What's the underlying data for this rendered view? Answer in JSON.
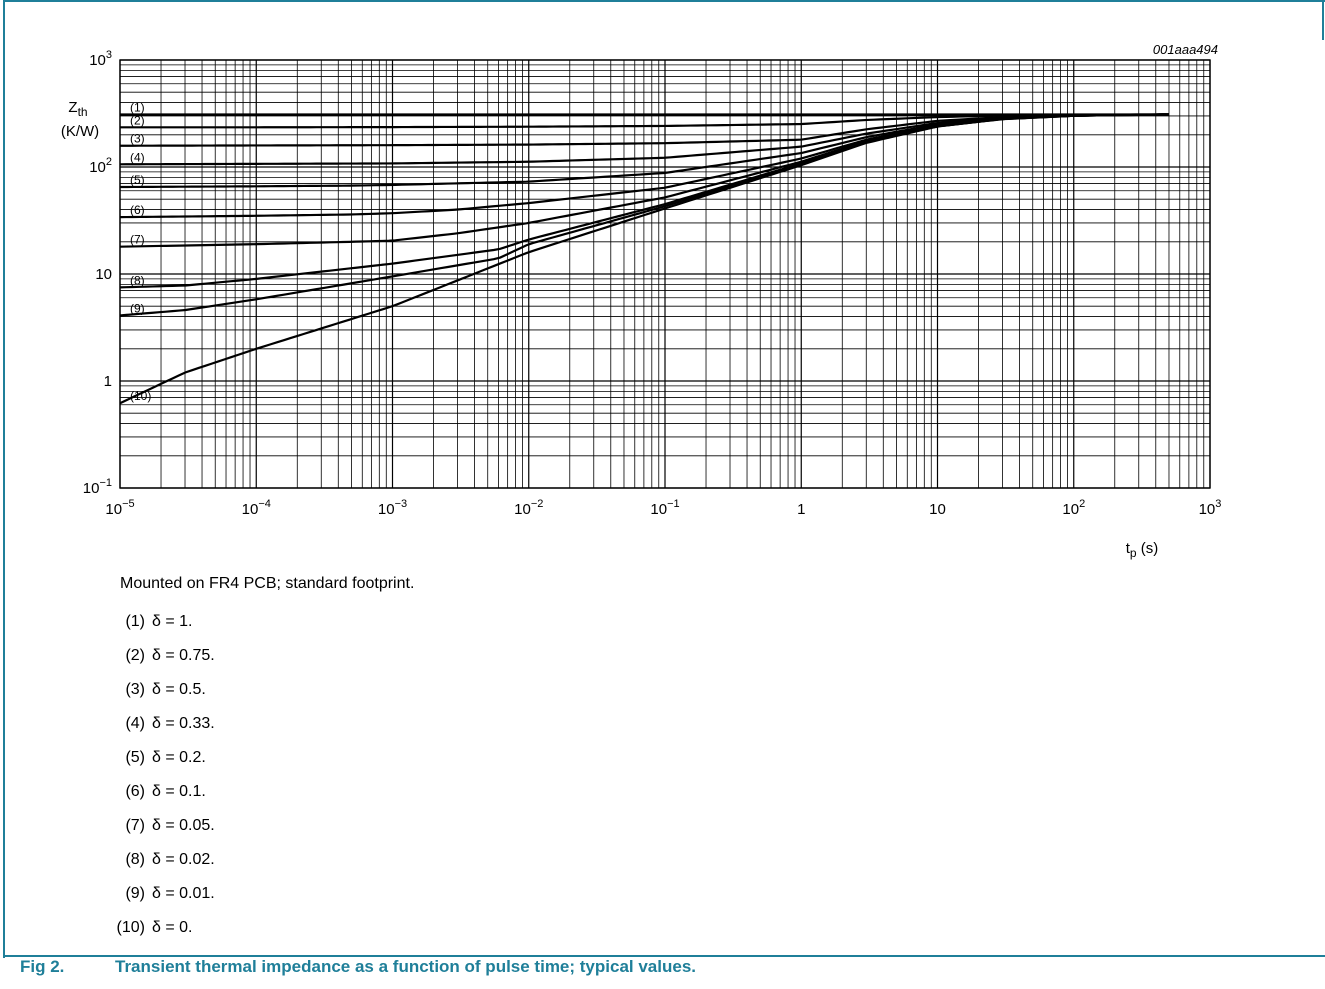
{
  "figure_code": "001aaa494",
  "note": "Mounted on FR4 PCB; standard footprint.",
  "caption_label": "Fig 2.",
  "caption_text": "Transient thermal impedance as a function of pulse time; typical values.",
  "legend_items": [
    {
      "num": "(1)",
      "text": "δ = 1."
    },
    {
      "num": "(2)",
      "text": "δ = 0.75."
    },
    {
      "num": "(3)",
      "text": "δ = 0.5."
    },
    {
      "num": "(4)",
      "text": "δ = 0.33."
    },
    {
      "num": "(5)",
      "text": "δ = 0.2."
    },
    {
      "num": "(6)",
      "text": "δ = 0.1."
    },
    {
      "num": "(7)",
      "text": "δ = 0.05."
    },
    {
      "num": "(8)",
      "text": "δ = 0.02."
    },
    {
      "num": "(9)",
      "text": "δ = 0.01."
    },
    {
      "num": "(10)",
      "text": "δ = 0."
    }
  ],
  "colors": {
    "line": "#000000",
    "grid": "#000000",
    "accent": "#1f7f99"
  },
  "chart_data": {
    "type": "line",
    "xscale": "log",
    "yscale": "log",
    "xlim": [
      1e-05,
      1000
    ],
    "ylim": [
      0.1,
      1000
    ],
    "ylabel": {
      "main": "Z",
      "sub": "th",
      "unit": "(K/W)"
    },
    "xlabel": {
      "main": "t",
      "sub": "p",
      "unit": "(s)"
    },
    "x_ticks": [
      {
        "v": 1e-05,
        "base": "10",
        "exp": "−5"
      },
      {
        "v": 0.0001,
        "base": "10",
        "exp": "−4"
      },
      {
        "v": 0.001,
        "base": "10",
        "exp": "−3"
      },
      {
        "v": 0.01,
        "base": "10",
        "exp": "−2"
      },
      {
        "v": 0.1,
        "base": "10",
        "exp": "−1"
      },
      {
        "v": 1,
        "base": "1",
        "exp": ""
      },
      {
        "v": 10,
        "base": "10",
        "exp": ""
      },
      {
        "v": 100,
        "base": "10",
        "exp": "2"
      },
      {
        "v": 1000,
        "base": "10",
        "exp": "3"
      }
    ],
    "y_ticks": [
      {
        "v": 0.1,
        "base": "10",
        "exp": "−1"
      },
      {
        "v": 1,
        "base": "1",
        "exp": ""
      },
      {
        "v": 10,
        "base": "10",
        "exp": ""
      },
      {
        "v": 100,
        "base": "10",
        "exp": "2"
      },
      {
        "v": 1000,
        "base": "10",
        "exp": "3"
      }
    ],
    "grid": true,
    "series": [
      {
        "name": "(1)",
        "points": [
          [
            1e-05,
            310
          ],
          [
            0.0001,
            310
          ],
          [
            0.001,
            310
          ],
          [
            0.01,
            310
          ],
          [
            0.1,
            310
          ],
          [
            1,
            310
          ],
          [
            10,
            310
          ],
          [
            100,
            310
          ],
          [
            500,
            310
          ]
        ]
      },
      {
        "name": "(2)",
        "points": [
          [
            1e-05,
            235
          ],
          [
            0.0001,
            235
          ],
          [
            0.001,
            236
          ],
          [
            0.01,
            238
          ],
          [
            0.1,
            242
          ],
          [
            1,
            252
          ],
          [
            3,
            275
          ],
          [
            10,
            293
          ],
          [
            30,
            302
          ],
          [
            100,
            308
          ],
          [
            500,
            310
          ]
        ]
      },
      {
        "name": "(3)",
        "points": [
          [
            1e-05,
            158
          ],
          [
            0.0001,
            159
          ],
          [
            0.001,
            160
          ],
          [
            0.01,
            162
          ],
          [
            0.1,
            167
          ],
          [
            1,
            180
          ],
          [
            3,
            225
          ],
          [
            10,
            270
          ],
          [
            30,
            292
          ],
          [
            100,
            305
          ],
          [
            500,
            310
          ]
        ]
      },
      {
        "name": "(4)",
        "points": [
          [
            1e-05,
            106
          ],
          [
            0.0001,
            107
          ],
          [
            0.001,
            108
          ],
          [
            0.01,
            112
          ],
          [
            0.1,
            122
          ],
          [
            1,
            155
          ],
          [
            3,
            205
          ],
          [
            10,
            258
          ],
          [
            30,
            288
          ],
          [
            100,
            303
          ],
          [
            500,
            310
          ]
        ]
      },
      {
        "name": "(5)",
        "points": [
          [
            1e-05,
            65
          ],
          [
            0.0001,
            66
          ],
          [
            0.0005,
            67
          ],
          [
            0.001,
            68
          ],
          [
            0.01,
            73
          ],
          [
            0.1,
            88
          ],
          [
            1,
            135
          ],
          [
            3,
            190
          ],
          [
            10,
            250
          ],
          [
            30,
            285
          ],
          [
            100,
            302
          ],
          [
            500,
            310
          ]
        ]
      },
      {
        "name": "(6)",
        "points": [
          [
            1e-05,
            34
          ],
          [
            0.0001,
            35
          ],
          [
            0.0005,
            36
          ],
          [
            0.001,
            37
          ],
          [
            0.003,
            40
          ],
          [
            0.01,
            46
          ],
          [
            0.1,
            64
          ],
          [
            1,
            120
          ],
          [
            3,
            180
          ],
          [
            10,
            245
          ],
          [
            30,
            283
          ],
          [
            100,
            302
          ],
          [
            500,
            310
          ]
        ]
      },
      {
        "name": "(7)",
        "points": [
          [
            1e-05,
            18
          ],
          [
            0.0001,
            19
          ],
          [
            0.0005,
            20
          ],
          [
            0.001,
            20.5
          ],
          [
            0.003,
            24
          ],
          [
            0.01,
            30
          ],
          [
            0.1,
            52
          ],
          [
            1,
            112
          ],
          [
            3,
            175
          ],
          [
            10,
            242
          ],
          [
            30,
            282
          ],
          [
            100,
            302
          ],
          [
            500,
            310
          ]
        ]
      },
      {
        "name": "(8)",
        "points": [
          [
            1e-05,
            7.5
          ],
          [
            3e-05,
            7.8
          ],
          [
            0.0001,
            9
          ],
          [
            0.001,
            12.5
          ],
          [
            0.006,
            17
          ],
          [
            0.01,
            21
          ],
          [
            0.1,
            45
          ],
          [
            1,
            108
          ],
          [
            3,
            172
          ],
          [
            10,
            240
          ],
          [
            30,
            281
          ],
          [
            100,
            301
          ],
          [
            500,
            310
          ]
        ]
      },
      {
        "name": "(9)",
        "points": [
          [
            1e-05,
            4.1
          ],
          [
            3e-05,
            4.6
          ],
          [
            0.0001,
            5.8
          ],
          [
            0.001,
            9.5
          ],
          [
            0.006,
            14
          ],
          [
            0.01,
            19
          ],
          [
            0.1,
            43
          ],
          [
            1,
            106
          ],
          [
            3,
            170
          ],
          [
            10,
            240
          ],
          [
            30,
            281
          ],
          [
            100,
            301
          ],
          [
            500,
            310
          ]
        ]
      },
      {
        "name": "(10)",
        "points": [
          [
            1e-05,
            0.62
          ],
          [
            3e-05,
            1.2
          ],
          [
            0.0001,
            2.0
          ],
          [
            0.001,
            5.0
          ],
          [
            0.01,
            16
          ],
          [
            0.1,
            41
          ],
          [
            1,
            104
          ],
          [
            3,
            168
          ],
          [
            10,
            239
          ],
          [
            30,
            280
          ],
          [
            100,
            301
          ],
          [
            500,
            310
          ]
        ]
      }
    ]
  }
}
